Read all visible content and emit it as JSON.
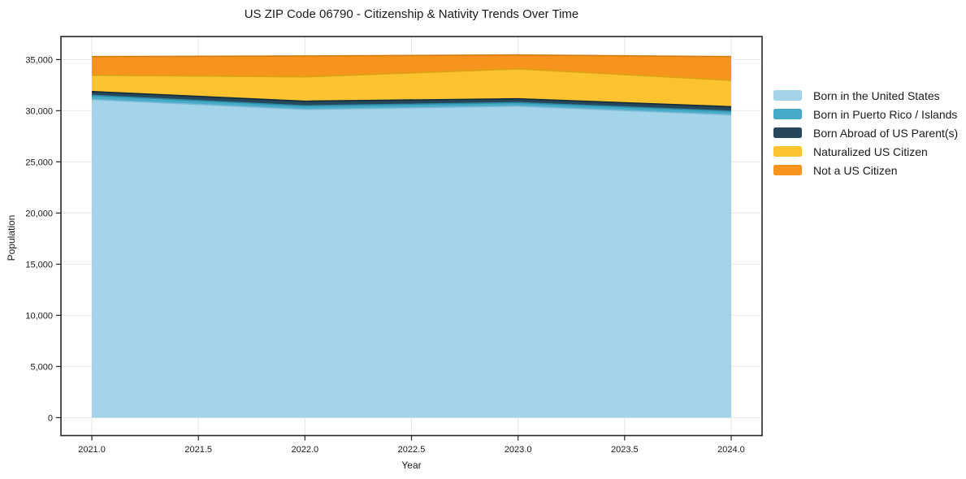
{
  "figure": {
    "title": "US ZIP Code 06790 - Citizenship & Nativity Trends Over Time",
    "xlabel": "Year",
    "ylabel": "Population",
    "background_color": "#ffffff",
    "frame_color": "#262626",
    "gridline_color": "#e7e7e7",
    "text_color": "#1a1a1a"
  },
  "chart_data": {
    "type": "area",
    "stacked": true,
    "title": "US ZIP Code 06790 - Citizenship & Nativity Trends Over Time",
    "xlabel": "Year",
    "ylabel": "Population",
    "grid": true,
    "legend_position": "outside-right",
    "x": [
      2021,
      2022,
      2023,
      2024
    ],
    "x_tick_labels": [
      "2021.0",
      "2021.5",
      "2022.0",
      "2022.5",
      "2023.0",
      "2023.5",
      "2024.0"
    ],
    "x_tick_values": [
      2021.0,
      2021.5,
      2022.0,
      2022.5,
      2023.0,
      2023.5,
      2024.0
    ],
    "y_tick_labels": [
      "0",
      "5,000",
      "10,000",
      "15,000",
      "20,000",
      "25,000",
      "30,000",
      "35,000"
    ],
    "y_tick_values": [
      0,
      5000,
      10000,
      15000,
      20000,
      25000,
      30000,
      35000
    ],
    "xlim": [
      2020.855,
      2024.145
    ],
    "ylim": [
      -1750,
      37250
    ],
    "series": [
      {
        "name": "Born in the United States",
        "color": "#a4d4e9",
        "edge_color": "#79b9d6",
        "values": [
          31100,
          30130,
          30450,
          29600
        ]
      },
      {
        "name": "Born in Puerto Rico / Islands",
        "color": "#45abc7",
        "edge_color": "#2e8ba5",
        "values": [
          400,
          350,
          340,
          350
        ]
      },
      {
        "name": "Born Abroad of US Parent(s)",
        "color": "#26475a",
        "edge_color": "#122c3a",
        "values": [
          370,
          450,
          380,
          440
        ]
      },
      {
        "name": "Naturalized US Citizen",
        "color": "#fcc330",
        "edge_color": "#d9a312",
        "values": [
          1600,
          2380,
          2910,
          2580
        ]
      },
      {
        "name": "Not a US Citizen",
        "color": "#f6941e",
        "edge_color": "#d57a0d",
        "values": [
          1820,
          2040,
          1370,
          2320
        ]
      }
    ],
    "stacked_totals": [
      35290,
      35350,
      35450,
      35290
    ]
  }
}
